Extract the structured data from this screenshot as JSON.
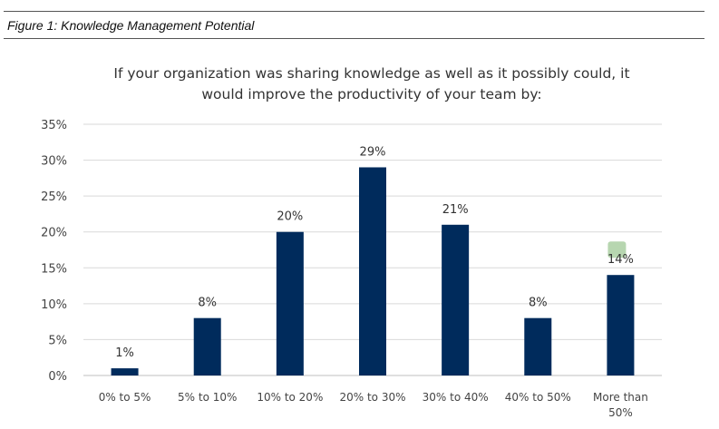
{
  "figure": {
    "caption": "Figure 1: Knowledge Management Potential"
  },
  "chart_data": {
    "type": "bar",
    "title_lines": [
      "If your organization was sharing knowledge as well as it possibly could, it",
      "would improve the productivity of your team by:"
    ],
    "categories": [
      [
        "0% to 5%"
      ],
      [
        "5% to 10%"
      ],
      [
        "10% to 20%"
      ],
      [
        "20% to 30%"
      ],
      [
        "30% to 40%"
      ],
      [
        "40% to 50%"
      ],
      [
        "More than",
        "50%"
      ]
    ],
    "values": [
      1,
      8,
      20,
      29,
      21,
      8,
      14
    ],
    "data_labels": [
      "1%",
      "8%",
      "20%",
      "29%",
      "21%",
      "8%",
      "14%"
    ],
    "yticks": [
      0,
      5,
      10,
      15,
      20,
      25,
      30,
      35
    ],
    "ytick_labels": [
      "0%",
      "5%",
      "10%",
      "15%",
      "20%",
      "25%",
      "30%",
      "35%"
    ],
    "ylim": [
      0,
      35
    ],
    "grid": true,
    "bar_color": "#002b5c",
    "highlight_color": "#b7d6b0"
  }
}
